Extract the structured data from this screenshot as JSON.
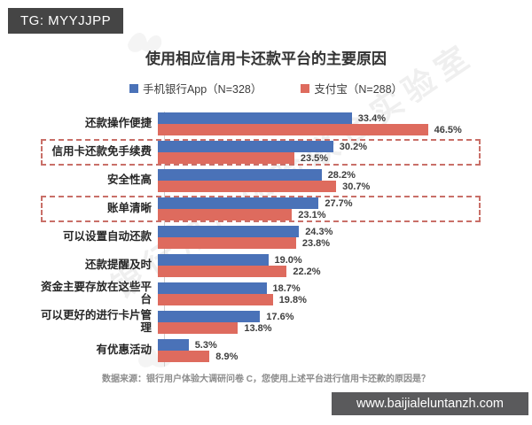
{
  "header": {
    "tag": "TG: MYYJJPP"
  },
  "footer": {
    "url": "www.baijialeluntanzh.com"
  },
  "watermark": {
    "text": "银行用户体验联合实验室"
  },
  "chart_data": {
    "type": "bar",
    "orientation": "horizontal",
    "title": "使用相应信用卡还款平台的主要原因",
    "legend": [
      {
        "label": "手机银行App（N=328）",
        "color": "#4a72b8"
      },
      {
        "label": "支付宝（N=288）",
        "color": "#de6b5e"
      }
    ],
    "categories": [
      "还款操作便捷",
      "信用卡还款免手续费",
      "安全性高",
      "账单清晰",
      "可以设置自动还款",
      "还款提醒及时",
      "资金主要存放在这些平台",
      "可以更好的进行卡片管理",
      "有优惠活动"
    ],
    "series": [
      {
        "name": "手机银行App（N=328）",
        "color": "#4a72b8",
        "values": [
          33.4,
          30.2,
          28.2,
          27.7,
          24.3,
          19.0,
          18.7,
          17.6,
          5.3
        ]
      },
      {
        "name": "支付宝（N=288）",
        "color": "#de6b5e",
        "values": [
          46.5,
          23.5,
          30.7,
          23.1,
          23.8,
          22.2,
          19.8,
          13.8,
          8.9
        ]
      }
    ],
    "value_suffix": "%",
    "highlighted_categories": [
      "信用卡还款免手续费",
      "账单清晰"
    ],
    "highlight_box_color": "#c96f68",
    "xlim": [
      0,
      50
    ],
    "grid": false,
    "legend_position": "top",
    "source": "数据来源：银行用户体验大调研问卷 C，您使用上述平台进行信用卡还款的原因是？"
  }
}
